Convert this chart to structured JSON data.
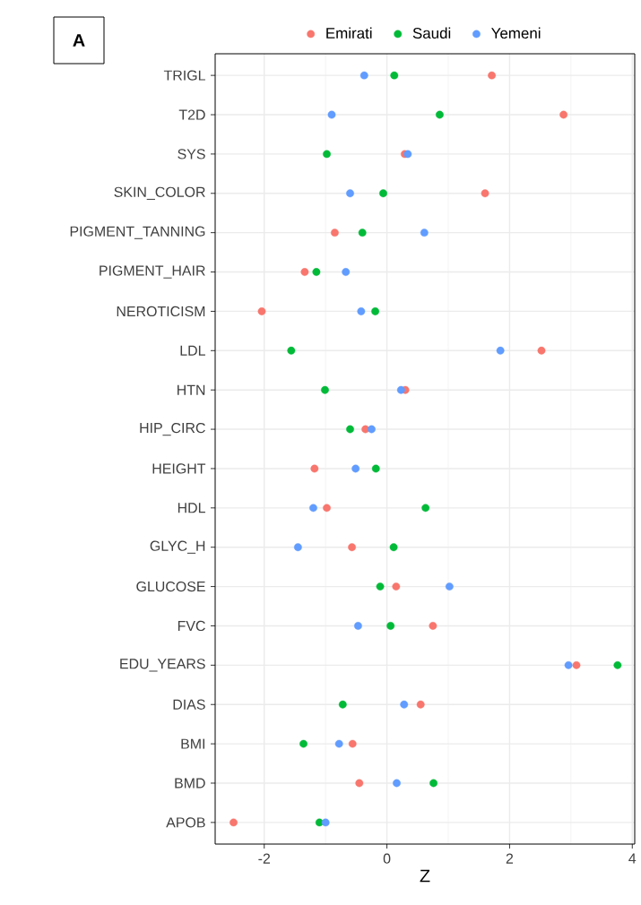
{
  "chart_data": {
    "type": "scatter",
    "orientation": "horizontal",
    "xlabel": "Z",
    "categories": [
      "TRIGL",
      "T2D",
      "SYS",
      "SKIN_COLOR",
      "PIGMENT_TANNING",
      "PIGMENT_HAIR",
      "NEROTICISM",
      "LDL",
      "HTN",
      "HIP_CIRC",
      "HEIGHT",
      "HDL",
      "GLYC_H",
      "GLUCOSE",
      "FVC",
      "EDU_YEARS",
      "DIAS",
      "BMI",
      "BMD",
      "APOB"
    ],
    "series": [
      {
        "name": "Emirati",
        "color": "#f8766d",
        "values": [
          1.71,
          2.88,
          0.29,
          1.6,
          -0.85,
          -1.34,
          -2.04,
          2.52,
          0.3,
          -0.35,
          -1.18,
          -0.98,
          -0.57,
          0.15,
          0.75,
          3.09,
          0.55,
          -0.56,
          -0.45,
          -2.5
        ]
      },
      {
        "name": "Saudi",
        "color": "#00ba38",
        "values": [
          0.12,
          0.86,
          -0.98,
          -0.06,
          -0.4,
          -1.15,
          -0.19,
          -1.56,
          -1.01,
          -0.6,
          -0.18,
          0.63,
          0.11,
          -0.11,
          0.06,
          3.76,
          -0.72,
          -1.36,
          0.76,
          -1.1
        ]
      },
      {
        "name": "Yemeni",
        "color": "#619cff",
        "values": [
          -0.37,
          -0.9,
          0.34,
          -0.6,
          0.61,
          -0.67,
          -0.42,
          1.85,
          0.23,
          -0.25,
          -0.51,
          -1.2,
          -1.45,
          1.02,
          -0.47,
          2.96,
          0.28,
          -0.78,
          0.16,
          -1.0
        ]
      }
    ],
    "xlim": [
      -2.8,
      4.04
    ],
    "xticks": [
      -2,
      0,
      2,
      4
    ],
    "grid": true,
    "legend": "top",
    "annotations": [
      "A"
    ]
  }
}
